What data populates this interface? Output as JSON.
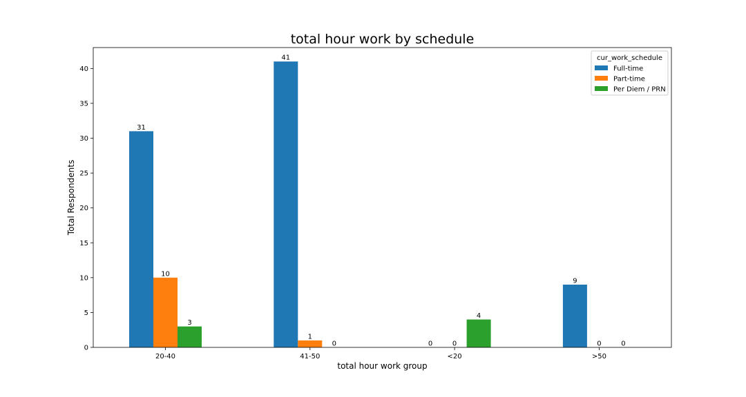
{
  "chart_data": {
    "type": "bar",
    "title": "total hour work by schedule",
    "xlabel": "total hour work group",
    "ylabel": "Total Respondents",
    "categories": [
      "20-40",
      "41-50",
      "<20",
      ">50"
    ],
    "series": [
      {
        "name": "Full-time",
        "color": "#1f77b4",
        "values": [
          31,
          41,
          0,
          9
        ]
      },
      {
        "name": "Part-time",
        "color": "#ff7f0e",
        "values": [
          10,
          1,
          0,
          0
        ]
      },
      {
        "name": "Per Diem / PRN",
        "color": "#2ca02c",
        "values": [
          3,
          0,
          4,
          0
        ]
      }
    ],
    "ylim": [
      0,
      43
    ],
    "yticks": [
      0,
      5,
      10,
      15,
      20,
      25,
      30,
      35,
      40
    ],
    "legend": {
      "title": "cur_work_schedule",
      "placement": "top-right"
    },
    "grid": false
  }
}
